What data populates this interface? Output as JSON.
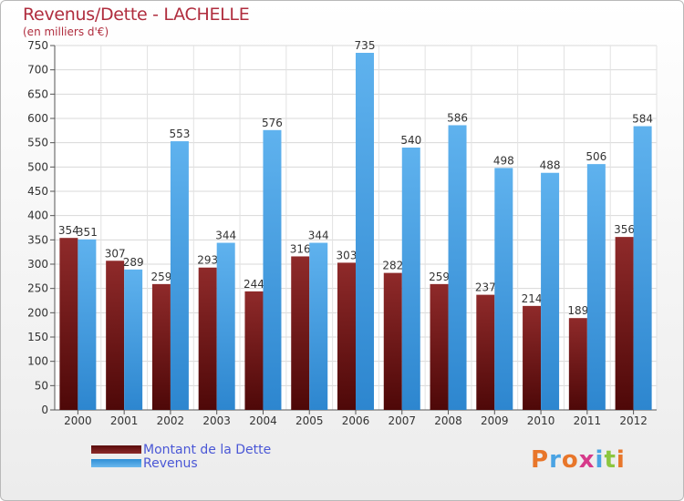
{
  "header": {
    "title": "Revenus/Dette - LACHELLE",
    "subtitle": "(en milliers d'€)"
  },
  "chart_data": {
    "type": "bar",
    "categories": [
      "2000",
      "2001",
      "2002",
      "2003",
      "2004",
      "2005",
      "2006",
      "2007",
      "2008",
      "2009",
      "2010",
      "2011",
      "2012"
    ],
    "series": [
      {
        "name": "Montant de la Dette",
        "color": "#7a1a1a",
        "values": [
          354,
          307,
          259,
          293,
          244,
          316,
          303,
          282,
          259,
          237,
          214,
          189,
          356
        ]
      },
      {
        "name": "Revenus",
        "color": "#4aa3e3",
        "values": [
          351,
          289,
          553,
          344,
          576,
          344,
          735,
          540,
          586,
          498,
          488,
          506,
          584
        ]
      }
    ],
    "ylim": [
      0,
      750
    ],
    "yticks": [
      0,
      50,
      100,
      150,
      200,
      250,
      300,
      350,
      400,
      450,
      500,
      550,
      600,
      650,
      700,
      750
    ],
    "grid": true,
    "legend": "bottom-left"
  },
  "logo": {
    "text": "Proxiti",
    "colors": [
      "#e8762a",
      "#4aa3e3",
      "#e8762a",
      "#d63a8a",
      "#4aa3e3",
      "#8cc63f",
      "#e8762a"
    ]
  }
}
